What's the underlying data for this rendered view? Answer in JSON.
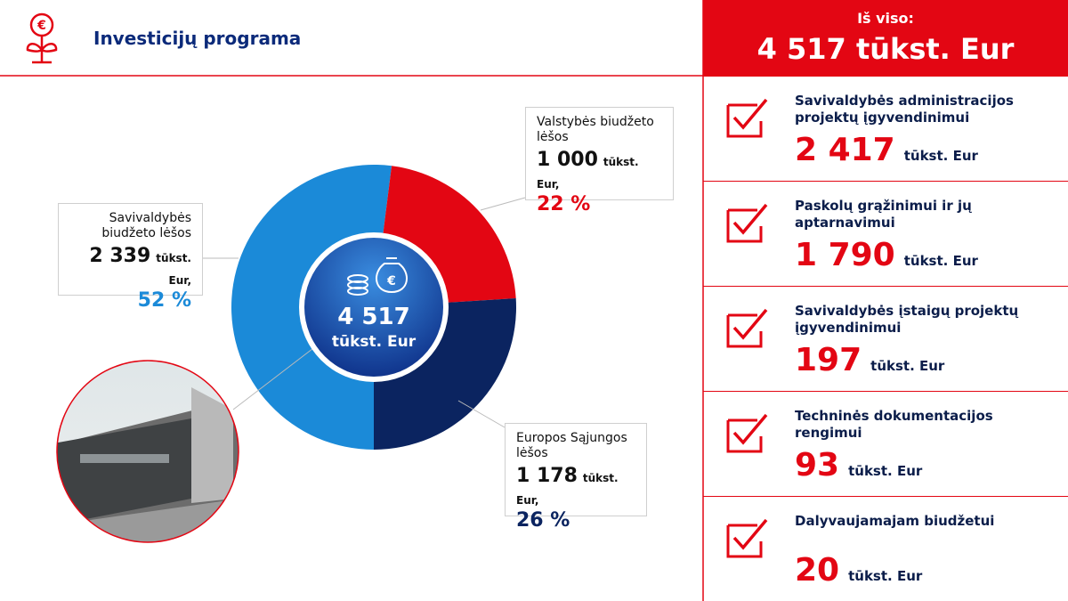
{
  "header": {
    "title": "Investicijų programa"
  },
  "chart_data": {
    "type": "donut",
    "categories": [
      "Savivaldybės biudžeto lėšos",
      "Valstybės biudžeto lėšos",
      "Europos Sąjungos lėšos"
    ],
    "values": [
      52,
      22,
      26
    ],
    "value_labels": [
      "52 %",
      "22 %",
      "26 %"
    ],
    "amounts": [
      2339,
      1000,
      1178
    ],
    "amount_labels": [
      "2 339",
      "1 000",
      "1 178"
    ],
    "unit": "tūkst. Eur,",
    "colors": [
      "#1b8ad8",
      "#e30613",
      "#0b2460"
    ],
    "center_label": "4 517",
    "center_unit": "tūkst. Eur"
  },
  "total": {
    "title": "Iš viso:",
    "amount": "4 517 tūkst. Eur"
  },
  "items": [
    {
      "label": "Savivaldybės administracijos projektų įgyvendinimui",
      "amount": "2 417",
      "unit": "tūkst. Eur"
    },
    {
      "label": "Paskolų grąžinimui ir jų aptarnavimui",
      "amount": "1 790",
      "unit": "tūkst. Eur"
    },
    {
      "label": "Savivaldybės įstaigų projektų įgyvendinimui",
      "amount": "197",
      "unit": "tūkst. Eur"
    },
    {
      "label": "Techninės dokumentacijos rengimui",
      "amount": "93",
      "unit": "tūkst. Eur"
    },
    {
      "label": "Dalyvaujamajam biudžetui",
      "amount": "20",
      "unit": "tūkst. Eur"
    }
  ]
}
